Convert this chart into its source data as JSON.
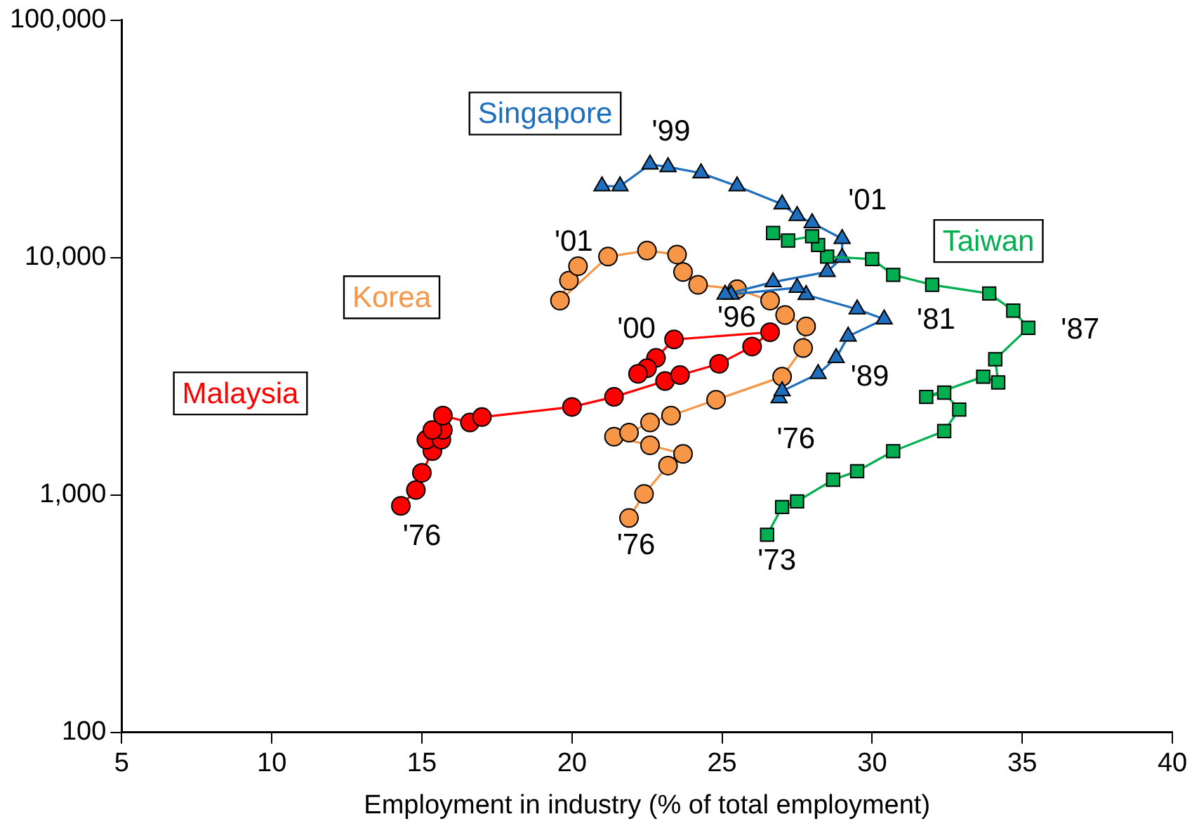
{
  "chart_data": {
    "type": "line",
    "xlabel": "Employment in industry (% of total employment)",
    "xlim": [
      5,
      40
    ],
    "xticks": [
      5,
      10,
      15,
      20,
      25,
      30,
      35,
      40
    ],
    "ylim": [
      100,
      100000
    ],
    "yticks": [
      100,
      {
        "value": 1000,
        "label": "1,000"
      },
      {
        "value": 10000,
        "label": "10,000"
      },
      {
        "value": 100000,
        "label": "100,000"
      }
    ],
    "log": "y",
    "grid": false,
    "legend": false,
    "line_style": "solid",
    "series": [
      {
        "name": "Malaysia",
        "color": "#ff0000",
        "marker": "circle",
        "x": [
          14.3,
          14.8,
          15.0,
          15.35,
          15.15,
          15.65,
          15.7,
          15.35,
          15.7,
          16.6,
          17.0,
          20.0,
          21.4,
          23.1,
          23.6,
          24.9,
          26.0,
          26.6,
          23.4,
          22.8,
          22.5,
          22.2
        ],
        "values": [
          900,
          1050,
          1240,
          1530,
          1710,
          1710,
          1880,
          1880,
          2160,
          2020,
          2130,
          2350,
          2590,
          3020,
          3200,
          3570,
          4220,
          4850,
          4520,
          3780,
          3420,
          3240
        ]
      },
      {
        "name": "Korea",
        "color": "#f79646",
        "marker": "circle",
        "x": [
          21.9,
          22.4,
          23.2,
          23.7,
          22.6,
          21.4,
          21.9,
          22.6,
          23.3,
          24.8,
          27.0,
          27.7,
          27.8,
          27.1,
          26.6,
          25.5,
          24.2,
          23.7,
          23.5,
          22.5,
          21.2,
          19.6,
          19.9,
          20.2
        ],
        "values": [
          800,
          1010,
          1330,
          1490,
          1620,
          1760,
          1830,
          2020,
          2160,
          2520,
          3150,
          4160,
          5130,
          5730,
          6590,
          7360,
          7680,
          8700,
          10300,
          10700,
          10100,
          6590,
          8000,
          9200
        ]
      },
      {
        "name": "Singapore",
        "color": "#1f6fbf",
        "marker": "triangle",
        "x": [
          26.9,
          27.0,
          28.2,
          28.8,
          29.2,
          30.4,
          29.5,
          27.8,
          27.5,
          25.3,
          25.1,
          26.7,
          28.5,
          29.0,
          29.0,
          28.0,
          27.5,
          27.0,
          25.5,
          24.3,
          23.2,
          22.6,
          21.6,
          21.0
        ],
        "values": [
          2560,
          2740,
          3240,
          3780,
          4660,
          5500,
          6060,
          6970,
          7470,
          7000,
          7000,
          7890,
          8710,
          10000,
          12000,
          14000,
          15000,
          16800,
          20000,
          22700,
          24100,
          24700,
          20000,
          20000
        ]
      },
      {
        "name": "Taiwan",
        "color": "#00b050",
        "marker": "square",
        "x": [
          26.5,
          27.0,
          27.5,
          28.7,
          29.5,
          30.7,
          32.4,
          32.9,
          32.4,
          31.8,
          33.7,
          34.2,
          34.1,
          35.2,
          34.7,
          33.9,
          32.0,
          30.7,
          30.0,
          28.5,
          28.2,
          28.0,
          27.2,
          26.7
        ],
        "values": [
          680,
          890,
          940,
          1160,
          1260,
          1530,
          1860,
          2290,
          2700,
          2590,
          3150,
          2980,
          3730,
          5060,
          5980,
          7060,
          7680,
          8460,
          9860,
          10100,
          11300,
          12300,
          11800,
          12700
        ]
      }
    ],
    "annotations": [
      {
        "text": "'76",
        "x": 14.3,
        "y": 900
      },
      {
        "text": "'00",
        "x": 22.8,
        "y": 3780
      },
      {
        "text": "'76",
        "x": 21.9,
        "y": 800
      },
      {
        "text": "'01",
        "x": 20.2,
        "y": 9200
      },
      {
        "text": "'76",
        "x": 26.9,
        "y": 2560
      },
      {
        "text": "'89",
        "x": 28.8,
        "y": 3780
      },
      {
        "text": "'96",
        "x": 25.3,
        "y": 7000
      },
      {
        "text": "'99",
        "x": 22.6,
        "y": 24700
      },
      {
        "text": "'81",
        "x": 30.4,
        "y": 5500
      },
      {
        "text": "'01",
        "x": 29.0,
        "y": 12000
      },
      {
        "text": "'87",
        "x": 35.2,
        "y": 5060
      },
      {
        "text": "'73",
        "x": 26.5,
        "y": 680
      }
    ]
  }
}
